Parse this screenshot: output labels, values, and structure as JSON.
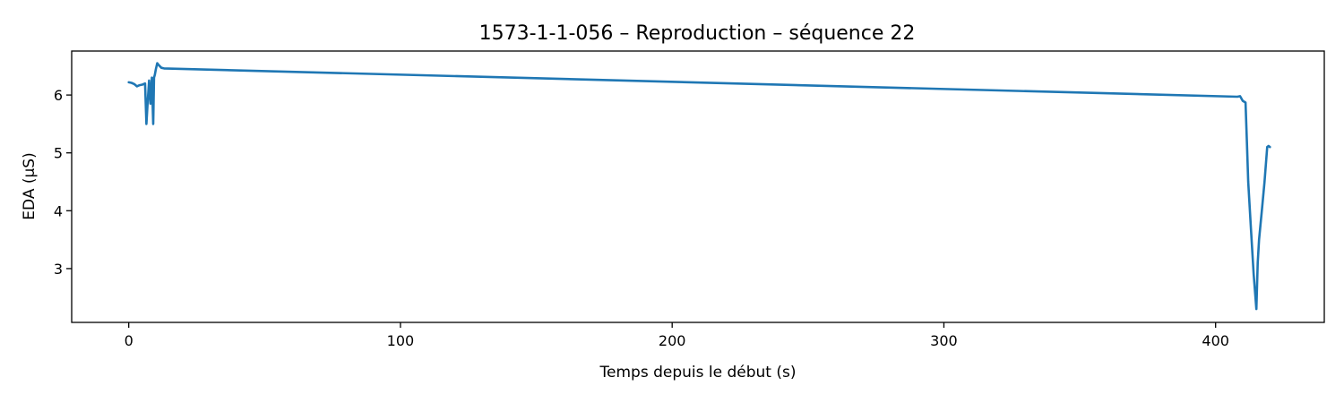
{
  "chart_data": {
    "type": "line",
    "title": "1573-1-1-056 – Reproduction – séquence 22",
    "xlabel": "Temps depuis le début (s)",
    "ylabel": "EDA (µS)",
    "xlim": [
      -21,
      440
    ],
    "ylim": [
      2.07,
      6.76
    ],
    "xticks": [
      0,
      100,
      200,
      300,
      400
    ],
    "yticks": [
      3,
      4,
      5,
      6
    ],
    "grid": false,
    "legend": "none",
    "series": [
      {
        "color": "#1f77b4",
        "x": [
          0,
          1,
          2,
          3,
          4,
          5,
          6,
          6.5,
          7,
          7.5,
          8,
          8.5,
          9,
          9.3,
          9.6,
          10,
          10.5,
          11,
          12,
          13,
          408,
          409,
          410,
          411,
          411.5,
          412,
          413,
          414,
          415,
          415.5,
          416,
          417,
          418,
          419,
          419.5,
          420
        ],
        "y": [
          6.22,
          6.21,
          6.19,
          6.15,
          6.17,
          6.18,
          6.2,
          5.5,
          5.9,
          6.25,
          5.85,
          6.3,
          5.5,
          6.3,
          6.35,
          6.45,
          6.55,
          6.52,
          6.47,
          6.46,
          5.97,
          5.98,
          5.9,
          5.87,
          5.2,
          4.5,
          3.7,
          2.9,
          2.3,
          3.1,
          3.5,
          4.0,
          4.5,
          5.1,
          5.12,
          5.1
        ]
      }
    ]
  }
}
